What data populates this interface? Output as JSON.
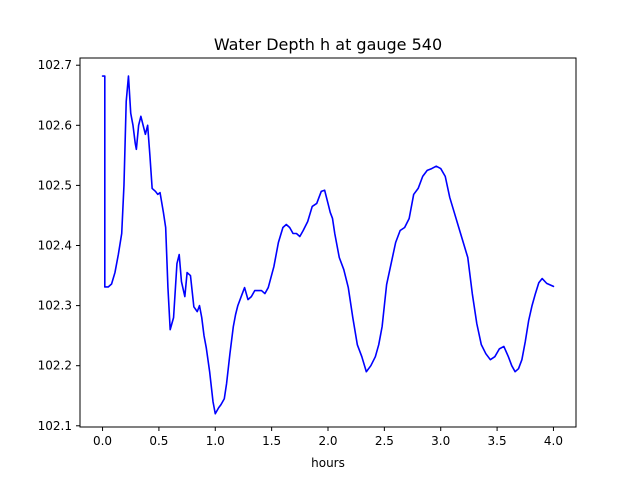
{
  "chart_data": {
    "type": "line",
    "title": "Water Depth h at gauge 540",
    "xlabel": "hours",
    "ylabel": "",
    "xlim": [
      -0.2,
      4.2
    ],
    "ylim": [
      102.098,
      102.712
    ],
    "grid": false,
    "xticks": [
      0.0,
      0.5,
      1.0,
      1.5,
      2.0,
      2.5,
      3.0,
      3.5,
      4.0
    ],
    "xtick_labels": [
      "0.0",
      "0.5",
      "1.0",
      "1.5",
      "2.0",
      "2.5",
      "3.0",
      "3.5",
      "4.0"
    ],
    "yticks": [
      102.1,
      102.2,
      102.3,
      102.4,
      102.5,
      102.6,
      102.7
    ],
    "ytick_labels": [
      "102.1",
      "102.2",
      "102.3",
      "102.4",
      "102.5",
      "102.6",
      "102.7"
    ],
    "series": [
      {
        "color": "#0000ff",
        "x": [
          0.0,
          0.02,
          0.02,
          0.02,
          0.05,
          0.08,
          0.11,
          0.14,
          0.17,
          0.19,
          0.21,
          0.23,
          0.25,
          0.27,
          0.29,
          0.3,
          0.32,
          0.34,
          0.36,
          0.38,
          0.4,
          0.42,
          0.44,
          0.47,
          0.49,
          0.51,
          0.54,
          0.56,
          0.58,
          0.6,
          0.63,
          0.66,
          0.68,
          0.7,
          0.73,
          0.75,
          0.78,
          0.81,
          0.84,
          0.86,
          0.88,
          0.9,
          0.92,
          0.95,
          0.98,
          1.0,
          1.03,
          1.05,
          1.08,
          1.1,
          1.13,
          1.16,
          1.18,
          1.2,
          1.23,
          1.26,
          1.29,
          1.32,
          1.35,
          1.38,
          1.41,
          1.44,
          1.47,
          1.52,
          1.56,
          1.6,
          1.63,
          1.66,
          1.69,
          1.72,
          1.75,
          1.78,
          1.82,
          1.86,
          1.9,
          1.94,
          1.97,
          2.0,
          2.02,
          2.04,
          2.06,
          2.1,
          2.14,
          2.18,
          2.22,
          2.26,
          2.3,
          2.34,
          2.38,
          2.42,
          2.45,
          2.48,
          2.5,
          2.52,
          2.56,
          2.6,
          2.64,
          2.68,
          2.72,
          2.76,
          2.8,
          2.84,
          2.88,
          2.92,
          2.96,
          3.0,
          3.04,
          3.08,
          3.12,
          3.16,
          3.2,
          3.24,
          3.28,
          3.32,
          3.36,
          3.4,
          3.44,
          3.48,
          3.52,
          3.56,
          3.6,
          3.63,
          3.66,
          3.69,
          3.72,
          3.75,
          3.78,
          3.81,
          3.84,
          3.87,
          3.9,
          3.94,
          4.0
        ],
        "y": [
          102.682,
          102.682,
          102.331,
          102.331,
          102.331,
          102.336,
          102.355,
          102.385,
          102.42,
          102.5,
          102.64,
          102.682,
          102.62,
          102.6,
          102.57,
          102.56,
          102.6,
          102.615,
          102.6,
          102.585,
          102.6,
          102.55,
          102.495,
          102.49,
          102.485,
          102.488,
          102.455,
          102.43,
          102.33,
          102.26,
          102.28,
          102.37,
          102.385,
          102.34,
          102.315,
          102.355,
          102.35,
          102.298,
          102.29,
          102.3,
          102.28,
          102.25,
          102.23,
          102.19,
          102.14,
          102.12,
          102.13,
          102.135,
          102.145,
          102.17,
          102.22,
          102.265,
          102.285,
          102.3,
          102.315,
          102.33,
          102.31,
          102.315,
          102.325,
          102.325,
          102.325,
          102.32,
          102.33,
          102.365,
          102.405,
          102.43,
          102.435,
          102.43,
          102.42,
          102.42,
          102.415,
          102.425,
          102.44,
          102.465,
          102.47,
          102.49,
          102.492,
          102.47,
          102.455,
          102.445,
          102.42,
          102.38,
          102.36,
          102.33,
          102.28,
          102.235,
          102.215,
          102.19,
          102.2,
          102.215,
          102.235,
          102.265,
          102.3,
          102.335,
          102.37,
          102.405,
          102.425,
          102.43,
          102.445,
          102.485,
          102.495,
          102.515,
          102.525,
          102.528,
          102.532,
          102.528,
          102.515,
          102.48,
          102.455,
          102.43,
          102.405,
          102.38,
          102.32,
          102.27,
          102.235,
          102.22,
          102.21,
          102.215,
          102.228,
          102.232,
          102.215,
          102.2,
          102.19,
          102.195,
          102.21,
          102.24,
          102.275,
          102.3,
          102.32,
          102.338,
          102.345,
          102.337,
          102.332
        ]
      }
    ]
  }
}
